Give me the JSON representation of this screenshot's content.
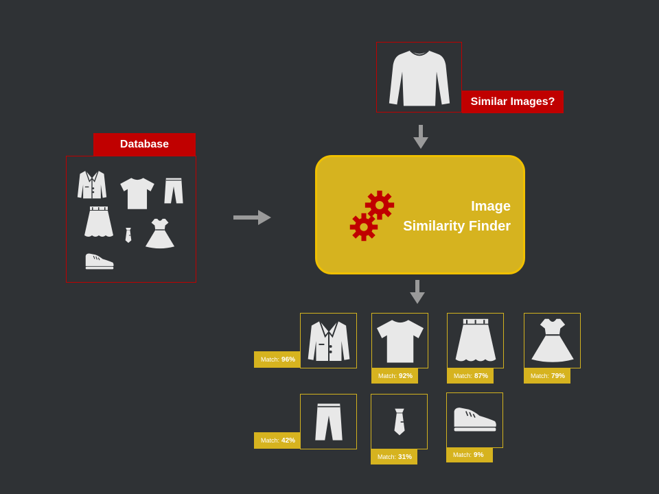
{
  "query": {
    "label": "Similar Images?",
    "icon": "sweater-icon"
  },
  "database": {
    "label": "Database",
    "items": [
      "jacket-icon",
      "tshirt-icon",
      "pants-icon",
      "skirt-icon",
      "tie-icon",
      "dress-icon",
      "shoe-icon"
    ]
  },
  "finder": {
    "title_line1": "Image",
    "title_line2": "Similarity Finder",
    "icon": "gears-icon"
  },
  "results": [
    {
      "icon": "jacket-icon",
      "prefix": "Match:",
      "value": "96%"
    },
    {
      "icon": "tshirt-icon",
      "prefix": "Match:",
      "value": "92%"
    },
    {
      "icon": "skirt-icon",
      "prefix": "Match:",
      "value": "87%"
    },
    {
      "icon": "dress-icon",
      "prefix": "Match:",
      "value": "79%"
    },
    {
      "icon": "pants-icon",
      "prefix": "Match:",
      "value": "42%"
    },
    {
      "icon": "tie-icon",
      "prefix": "Match:",
      "value": "31%"
    },
    {
      "icon": "shoe-icon",
      "prefix": "Match:",
      "value": "9%"
    }
  ],
  "colors": {
    "background": "#2f3235",
    "accent_red": "#c00000",
    "accent_gold": "#d6b31f",
    "icon_fill": "#e8e8e8",
    "arrow": "#9a9a9a"
  }
}
